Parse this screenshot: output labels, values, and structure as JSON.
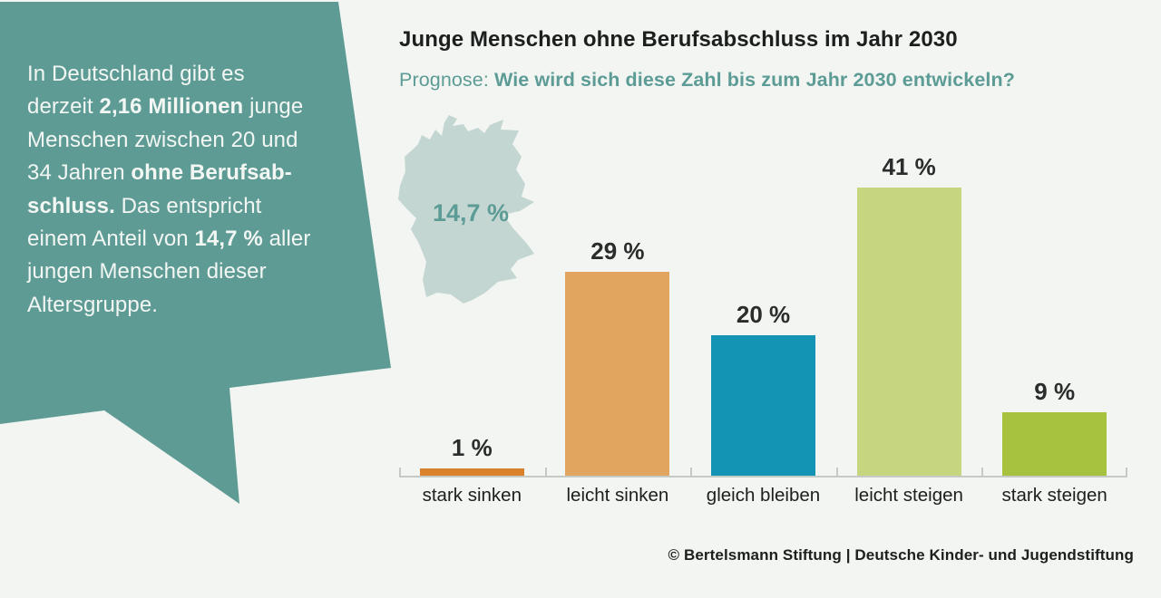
{
  "page": {
    "background": "#f2f5f1"
  },
  "bubble": {
    "fill": "#5f9b95",
    "text_color": "#f3f7f4",
    "full_text": "In Deutschland gibt es derzeit 2,16 Millionen junge Menschen zwischen 20 und 34 Jahren ohne Berufsabschluss. Das entspricht einem Anteil von 14,7 % aller jungen Menschen dieser Altersgruppe.",
    "lines": [
      [
        {
          "t": "In Deutschland gibt es",
          "b": false
        }
      ],
      [
        {
          "t": "derzeit ",
          "b": false
        },
        {
          "t": "2,16 Millionen",
          "b": true
        },
        {
          "t": " junge",
          "b": false
        }
      ],
      [
        {
          "t": "Menschen zwischen 20 und",
          "b": false
        }
      ],
      [
        {
          "t": "34 Jahren ",
          "b": false
        },
        {
          "t": "ohne Berufsab-",
          "b": true
        }
      ],
      [
        {
          "t": "schluss.",
          "b": true
        },
        {
          "t": " Das entspricht",
          "b": false
        }
      ],
      [
        {
          "t": "einem Anteil von ",
          "b": false
        },
        {
          "t": "14,7 %",
          "b": true
        },
        {
          "t": " aller",
          "b": false
        }
      ],
      [
        {
          "t": "jungen Menschen dieser",
          "b": false
        }
      ],
      [
        {
          "t": "Altersgruppe.",
          "b": false
        }
      ]
    ]
  },
  "header": {
    "title": "Junge Menschen ohne Berufsabschluss im Jahr 2030",
    "subtitle_prefix": "Prognose: ",
    "subtitle_bold": "Wie wird sich diese Zahl bis zum Jahr 2030 entwickeln?",
    "title_color": "#1d1f1e",
    "subtitle_color": "#5d9c96"
  },
  "map": {
    "label": "14,7 %",
    "fill": "#c3d6d2",
    "label_color": "#5d9c96"
  },
  "chart_data": {
    "type": "bar",
    "title": "Junge Menschen ohne Berufsabschluss im Jahr 2030",
    "subtitle": "Prognose: Wie wird sich diese Zahl bis zum Jahr 2030 entwickeln?",
    "categories": [
      "stark sinken",
      "leicht sinken",
      "gleich bleiben",
      "leicht steigen",
      "stark steigen"
    ],
    "values": [
      1,
      29,
      20,
      41,
      9
    ],
    "value_labels": [
      "1 %",
      "29 %",
      "20 %",
      "41 %",
      "9 %"
    ],
    "unit": "%",
    "bar_colors": [
      "#d9822b",
      "#e2a55f",
      "#1494b4",
      "#c5d67e",
      "#a6c23f"
    ],
    "grid": false,
    "legend": "none",
    "axis_color": "#c6cac6",
    "annotation_on_map": "14,7 %",
    "source": "© Bertelsmann Stiftung | Deutsche Kinder- und Jugendstiftung"
  },
  "footer": {
    "text": "© Bertelsmann Stiftung | Deutsche Kinder- und Jugendstiftung"
  }
}
